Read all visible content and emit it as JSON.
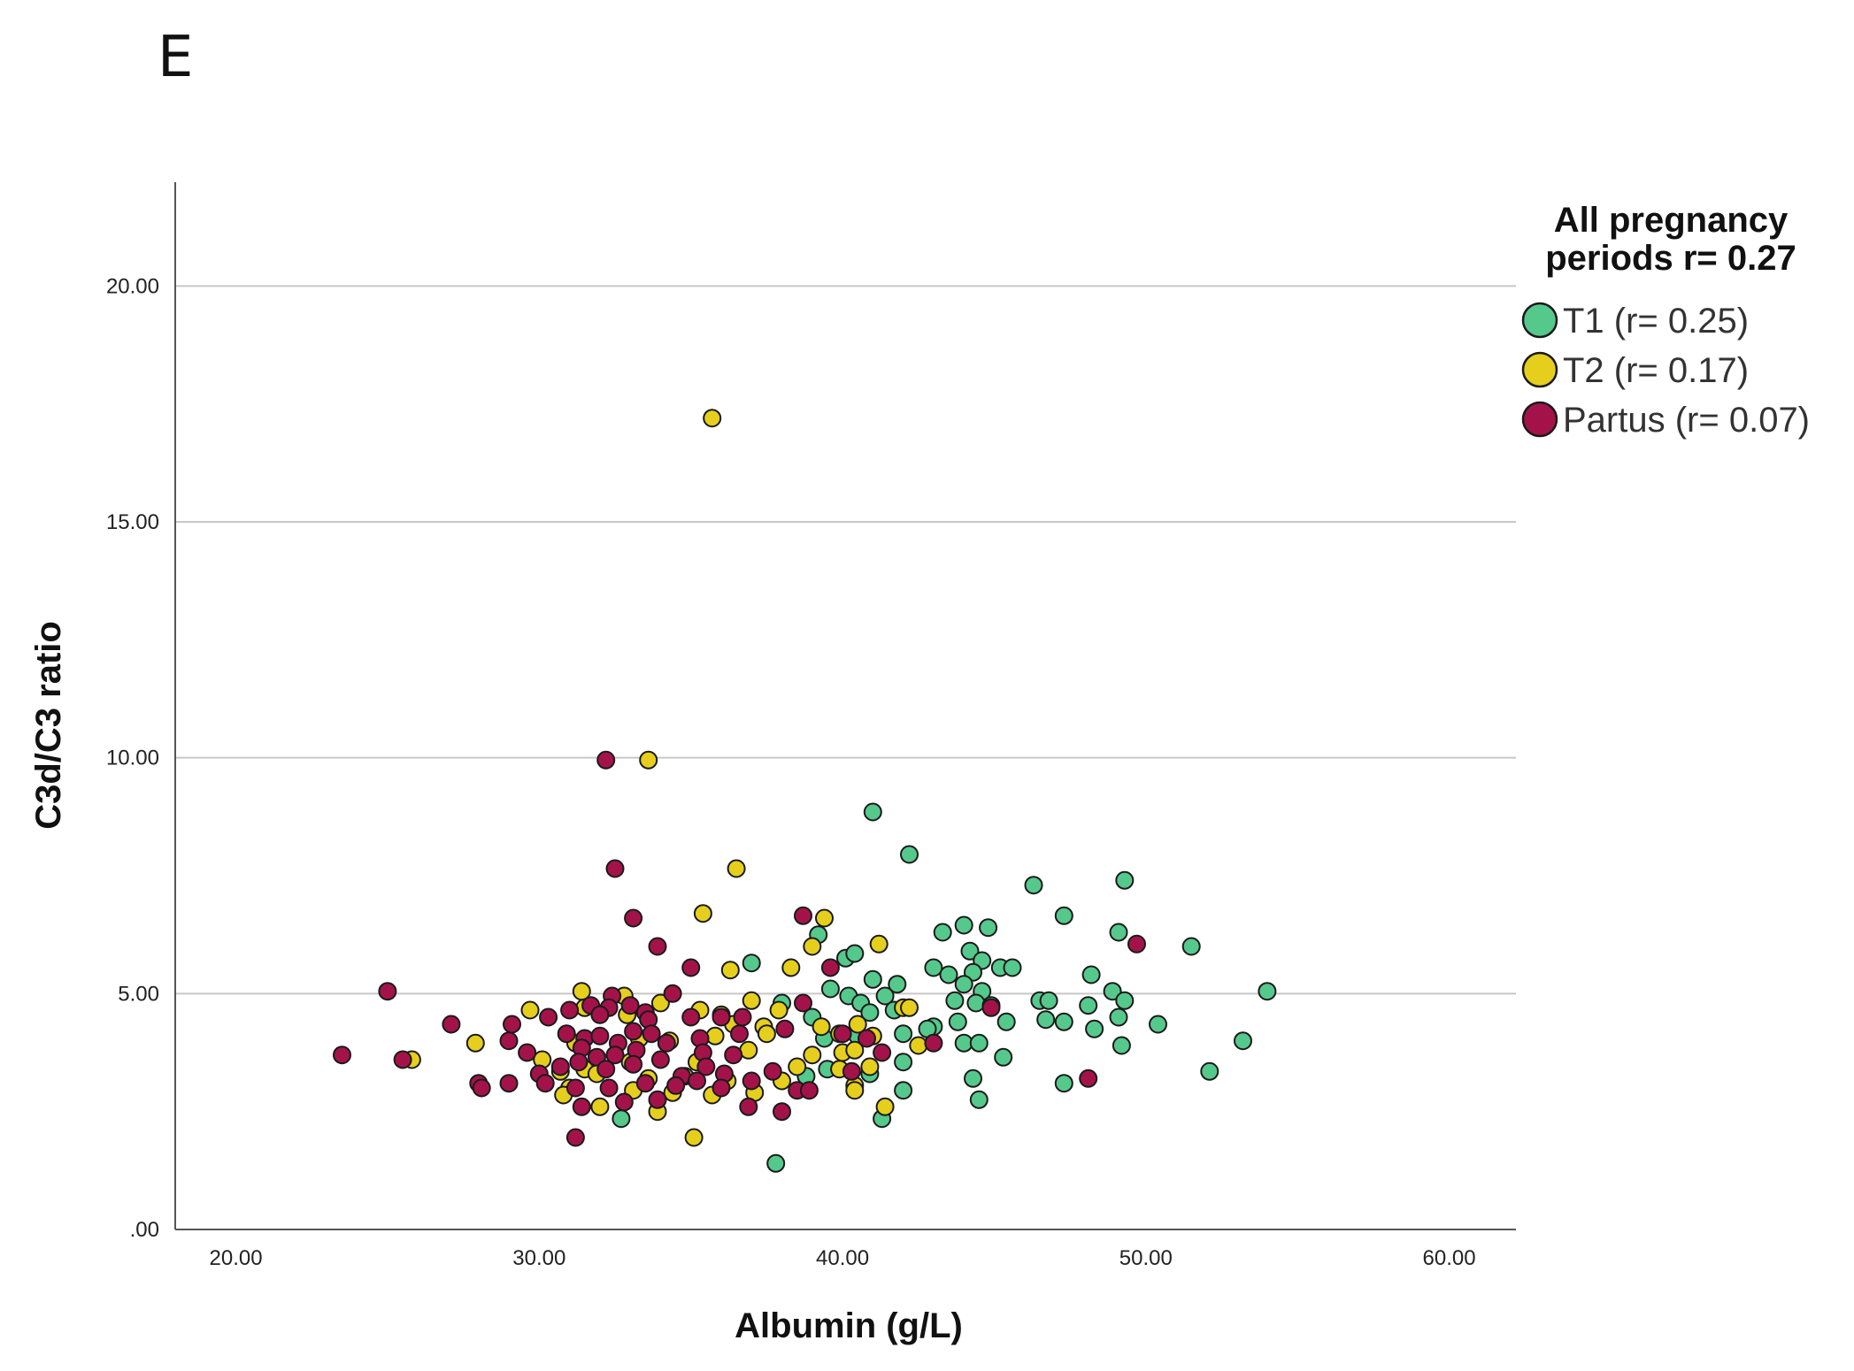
{
  "panel_label": "E",
  "chart_data": {
    "type": "scatter",
    "xlabel": "Albumin (g/L)",
    "ylabel": "C3d/C3 ratio",
    "xlim": [
      18,
      62.2
    ],
    "ylim": [
      0,
      22.2
    ],
    "xticks": [
      "20.00",
      "30.00",
      "40.00",
      "50.00",
      "60.00"
    ],
    "yticks": [
      ".00",
      "5.00",
      "10.00",
      "15.00",
      "20.00"
    ],
    "grid": "horizontal",
    "legend": {
      "position": "right",
      "title_line1": "All pregnancy",
      "title_line2": "periods r= 0.27",
      "entries": [
        "T1 (r= 0.25)",
        "T2 (r= 0.17)",
        "Partus (r= 0.07)"
      ]
    },
    "series": [
      {
        "name": "T1 (r= 0.25)",
        "color": "#54c98b",
        "points": [
          [
            41.0,
            8.85
          ],
          [
            42.2,
            7.95
          ],
          [
            46.3,
            7.3
          ],
          [
            49.3,
            7.4
          ],
          [
            47.3,
            6.65
          ],
          [
            43.3,
            6.3
          ],
          [
            44.0,
            6.45
          ],
          [
            44.8,
            6.4
          ],
          [
            49.1,
            6.3
          ],
          [
            51.5,
            6.0
          ],
          [
            39.2,
            6.25
          ],
          [
            40.1,
            5.75
          ],
          [
            40.4,
            5.85
          ],
          [
            37.0,
            5.65
          ],
          [
            44.2,
            5.9
          ],
          [
            44.6,
            5.7
          ],
          [
            43.0,
            5.55
          ],
          [
            43.5,
            5.4
          ],
          [
            44.3,
            5.45
          ],
          [
            45.2,
            5.55
          ],
          [
            45.6,
            5.55
          ],
          [
            48.2,
            5.4
          ],
          [
            41.0,
            5.3
          ],
          [
            41.8,
            5.2
          ],
          [
            44.0,
            5.2
          ],
          [
            44.6,
            5.05
          ],
          [
            48.9,
            5.05
          ],
          [
            54.0,
            5.05
          ],
          [
            38.0,
            4.8
          ],
          [
            40.2,
            4.95
          ],
          [
            40.6,
            4.8
          ],
          [
            39.6,
            5.1
          ],
          [
            41.4,
            4.95
          ],
          [
            43.7,
            4.85
          ],
          [
            44.4,
            4.8
          ],
          [
            44.9,
            4.75
          ],
          [
            46.5,
            4.85
          ],
          [
            46.8,
            4.85
          ],
          [
            49.3,
            4.85
          ],
          [
            48.1,
            4.75
          ],
          [
            39.0,
            4.5
          ],
          [
            40.9,
            4.6
          ],
          [
            41.7,
            4.65
          ],
          [
            43.0,
            4.3
          ],
          [
            43.8,
            4.4
          ],
          [
            45.4,
            4.4
          ],
          [
            46.7,
            4.45
          ],
          [
            47.3,
            4.4
          ],
          [
            49.1,
            4.5
          ],
          [
            50.4,
            4.35
          ],
          [
            48.3,
            4.25
          ],
          [
            42.0,
            4.15
          ],
          [
            39.4,
            4.05
          ],
          [
            40.5,
            4.1
          ],
          [
            42.8,
            4.25
          ],
          [
            44.0,
            3.95
          ],
          [
            44.5,
            3.95
          ],
          [
            49.2,
            3.9
          ],
          [
            53.2,
            4.0
          ],
          [
            45.3,
            3.65
          ],
          [
            42.0,
            3.55
          ],
          [
            38.8,
            3.25
          ],
          [
            39.5,
            3.4
          ],
          [
            40.9,
            3.3
          ],
          [
            44.3,
            3.2
          ],
          [
            47.3,
            3.1
          ],
          [
            52.1,
            3.35
          ],
          [
            42.0,
            2.95
          ],
          [
            44.5,
            2.75
          ],
          [
            32.7,
            2.35
          ],
          [
            41.3,
            2.35
          ],
          [
            37.8,
            1.4
          ]
        ]
      },
      {
        "name": "T2 (r= 0.17)",
        "color": "#e6cf1c",
        "points": [
          [
            35.7,
            17.2
          ],
          [
            33.6,
            9.95
          ],
          [
            36.5,
            7.65
          ],
          [
            35.4,
            6.7
          ],
          [
            39.4,
            6.6
          ],
          [
            39.0,
            6.0
          ],
          [
            41.2,
            6.05
          ],
          [
            38.3,
            5.55
          ],
          [
            36.3,
            5.5
          ],
          [
            31.4,
            5.05
          ],
          [
            32.8,
            4.95
          ],
          [
            29.7,
            4.65
          ],
          [
            31.5,
            4.7
          ],
          [
            32.9,
            4.55
          ],
          [
            34.0,
            4.8
          ],
          [
            35.3,
            4.65
          ],
          [
            36.0,
            4.55
          ],
          [
            37.0,
            4.85
          ],
          [
            37.9,
            4.65
          ],
          [
            42.0,
            4.7
          ],
          [
            42.2,
            4.7
          ],
          [
            36.4,
            4.35
          ],
          [
            37.4,
            4.3
          ],
          [
            39.3,
            4.3
          ],
          [
            40.5,
            4.35
          ],
          [
            27.9,
            3.95
          ],
          [
            31.2,
            3.95
          ],
          [
            33.3,
            4.05
          ],
          [
            34.3,
            4.0
          ],
          [
            35.8,
            4.1
          ],
          [
            37.5,
            4.15
          ],
          [
            39.9,
            4.15
          ],
          [
            41.0,
            4.1
          ],
          [
            42.5,
            3.9
          ],
          [
            36.9,
            3.8
          ],
          [
            39.0,
            3.7
          ],
          [
            40.0,
            3.75
          ],
          [
            40.4,
            3.8
          ],
          [
            25.8,
            3.6
          ],
          [
            30.1,
            3.6
          ],
          [
            31.5,
            3.4
          ],
          [
            33.0,
            3.55
          ],
          [
            35.2,
            3.55
          ],
          [
            38.5,
            3.45
          ],
          [
            39.9,
            3.4
          ],
          [
            40.9,
            3.45
          ],
          [
            30.7,
            3.35
          ],
          [
            31.9,
            3.3
          ],
          [
            33.6,
            3.2
          ],
          [
            34.8,
            3.25
          ],
          [
            36.2,
            3.15
          ],
          [
            38.0,
            3.15
          ],
          [
            40.4,
            3.05
          ],
          [
            31.0,
            3.0
          ],
          [
            30.8,
            2.85
          ],
          [
            33.1,
            2.95
          ],
          [
            34.4,
            2.9
          ],
          [
            35.7,
            2.85
          ],
          [
            37.1,
            2.9
          ],
          [
            40.4,
            2.95
          ],
          [
            32.0,
            2.6
          ],
          [
            33.9,
            2.5
          ],
          [
            41.4,
            2.6
          ],
          [
            35.1,
            1.95
          ]
        ]
      },
      {
        "name": "Partus (r= 0.07)",
        "color": "#a3134a",
        "points": [
          [
            32.2,
            9.95
          ],
          [
            32.5,
            7.65
          ],
          [
            33.1,
            6.6
          ],
          [
            38.7,
            6.65
          ],
          [
            33.9,
            6.0
          ],
          [
            49.7,
            6.05
          ],
          [
            35.0,
            5.55
          ],
          [
            39.6,
            5.55
          ],
          [
            25.0,
            5.05
          ],
          [
            32.4,
            4.95
          ],
          [
            34.4,
            5.0
          ],
          [
            31.0,
            4.65
          ],
          [
            31.7,
            4.75
          ],
          [
            32.3,
            4.7
          ],
          [
            33.0,
            4.75
          ],
          [
            33.5,
            4.6
          ],
          [
            32.0,
            4.55
          ],
          [
            30.3,
            4.5
          ],
          [
            29.1,
            4.35
          ],
          [
            27.1,
            4.35
          ],
          [
            33.6,
            4.45
          ],
          [
            35.0,
            4.5
          ],
          [
            36.0,
            4.5
          ],
          [
            36.7,
            4.5
          ],
          [
            38.7,
            4.8
          ],
          [
            44.9,
            4.7
          ],
          [
            29.0,
            4.0
          ],
          [
            30.9,
            4.15
          ],
          [
            31.5,
            4.05
          ],
          [
            32.0,
            4.1
          ],
          [
            32.6,
            3.95
          ],
          [
            33.1,
            4.2
          ],
          [
            33.7,
            4.15
          ],
          [
            34.2,
            3.95
          ],
          [
            35.3,
            4.05
          ],
          [
            36.6,
            4.15
          ],
          [
            38.1,
            4.25
          ],
          [
            40.0,
            4.15
          ],
          [
            40.8,
            4.05
          ],
          [
            43.0,
            3.95
          ],
          [
            29.6,
            3.75
          ],
          [
            31.4,
            3.85
          ],
          [
            31.9,
            3.65
          ],
          [
            32.5,
            3.7
          ],
          [
            33.2,
            3.8
          ],
          [
            34.0,
            3.6
          ],
          [
            35.4,
            3.75
          ],
          [
            36.4,
            3.7
          ],
          [
            41.3,
            3.75
          ],
          [
            23.5,
            3.7
          ],
          [
            25.5,
            3.6
          ],
          [
            30.0,
            3.3
          ],
          [
            30.7,
            3.45
          ],
          [
            31.3,
            3.55
          ],
          [
            32.2,
            3.4
          ],
          [
            33.1,
            3.5
          ],
          [
            34.7,
            3.25
          ],
          [
            35.5,
            3.45
          ],
          [
            36.1,
            3.3
          ],
          [
            37.7,
            3.35
          ],
          [
            40.3,
            3.35
          ],
          [
            28.0,
            3.1
          ],
          [
            29.0,
            3.1
          ],
          [
            30.2,
            3.1
          ],
          [
            31.2,
            3.0
          ],
          [
            32.3,
            3.0
          ],
          [
            33.5,
            3.1
          ],
          [
            34.5,
            3.05
          ],
          [
            35.2,
            3.15
          ],
          [
            36.0,
            3.0
          ],
          [
            37.0,
            3.15
          ],
          [
            38.5,
            2.95
          ],
          [
            38.9,
            2.95
          ],
          [
            48.1,
            3.2
          ],
          [
            28.1,
            3.0
          ],
          [
            31.4,
            2.6
          ],
          [
            32.8,
            2.7
          ],
          [
            33.9,
            2.75
          ],
          [
            36.9,
            2.6
          ],
          [
            38.0,
            2.5
          ],
          [
            31.2,
            1.95
          ]
        ]
      }
    ]
  }
}
